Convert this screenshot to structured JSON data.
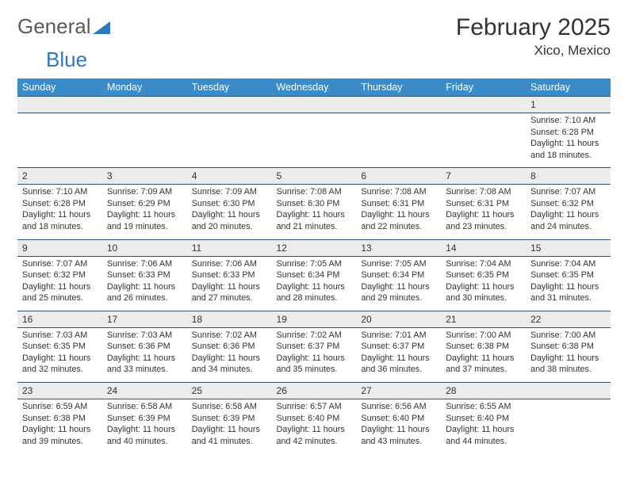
{
  "brand": {
    "part1": "General",
    "part2": "Blue"
  },
  "title": "February 2025",
  "location": "Xico, Mexico",
  "colors": {
    "header_bg": "#3b8bc9",
    "header_text": "#ffffff",
    "daynum_bg": "#ececec",
    "row_border": "#30517a",
    "brand_blue": "#2e78bf",
    "text": "#333333",
    "page_bg": "#ffffff"
  },
  "typography": {
    "title_fontsize": 30,
    "subtitle_fontsize": 17,
    "dayheader_fontsize": 12.5,
    "daynum_fontsize": 12,
    "detail_fontsize": 10.8
  },
  "day_headers": [
    "Sunday",
    "Monday",
    "Tuesday",
    "Wednesday",
    "Thursday",
    "Friday",
    "Saturday"
  ],
  "weeks": [
    [
      null,
      null,
      null,
      null,
      null,
      null,
      {
        "n": "1",
        "sunrise": "7:10 AM",
        "sunset": "6:28 PM",
        "daylight": "11 hours and 18 minutes."
      }
    ],
    [
      {
        "n": "2",
        "sunrise": "7:10 AM",
        "sunset": "6:28 PM",
        "daylight": "11 hours and 18 minutes."
      },
      {
        "n": "3",
        "sunrise": "7:09 AM",
        "sunset": "6:29 PM",
        "daylight": "11 hours and 19 minutes."
      },
      {
        "n": "4",
        "sunrise": "7:09 AM",
        "sunset": "6:30 PM",
        "daylight": "11 hours and 20 minutes."
      },
      {
        "n": "5",
        "sunrise": "7:08 AM",
        "sunset": "6:30 PM",
        "daylight": "11 hours and 21 minutes."
      },
      {
        "n": "6",
        "sunrise": "7:08 AM",
        "sunset": "6:31 PM",
        "daylight": "11 hours and 22 minutes."
      },
      {
        "n": "7",
        "sunrise": "7:08 AM",
        "sunset": "6:31 PM",
        "daylight": "11 hours and 23 minutes."
      },
      {
        "n": "8",
        "sunrise": "7:07 AM",
        "sunset": "6:32 PM",
        "daylight": "11 hours and 24 minutes."
      }
    ],
    [
      {
        "n": "9",
        "sunrise": "7:07 AM",
        "sunset": "6:32 PM",
        "daylight": "11 hours and 25 minutes."
      },
      {
        "n": "10",
        "sunrise": "7:06 AM",
        "sunset": "6:33 PM",
        "daylight": "11 hours and 26 minutes."
      },
      {
        "n": "11",
        "sunrise": "7:06 AM",
        "sunset": "6:33 PM",
        "daylight": "11 hours and 27 minutes."
      },
      {
        "n": "12",
        "sunrise": "7:05 AM",
        "sunset": "6:34 PM",
        "daylight": "11 hours and 28 minutes."
      },
      {
        "n": "13",
        "sunrise": "7:05 AM",
        "sunset": "6:34 PM",
        "daylight": "11 hours and 29 minutes."
      },
      {
        "n": "14",
        "sunrise": "7:04 AM",
        "sunset": "6:35 PM",
        "daylight": "11 hours and 30 minutes."
      },
      {
        "n": "15",
        "sunrise": "7:04 AM",
        "sunset": "6:35 PM",
        "daylight": "11 hours and 31 minutes."
      }
    ],
    [
      {
        "n": "16",
        "sunrise": "7:03 AM",
        "sunset": "6:35 PM",
        "daylight": "11 hours and 32 minutes."
      },
      {
        "n": "17",
        "sunrise": "7:03 AM",
        "sunset": "6:36 PM",
        "daylight": "11 hours and 33 minutes."
      },
      {
        "n": "18",
        "sunrise": "7:02 AM",
        "sunset": "6:36 PM",
        "daylight": "11 hours and 34 minutes."
      },
      {
        "n": "19",
        "sunrise": "7:02 AM",
        "sunset": "6:37 PM",
        "daylight": "11 hours and 35 minutes."
      },
      {
        "n": "20",
        "sunrise": "7:01 AM",
        "sunset": "6:37 PM",
        "daylight": "11 hours and 36 minutes."
      },
      {
        "n": "21",
        "sunrise": "7:00 AM",
        "sunset": "6:38 PM",
        "daylight": "11 hours and 37 minutes."
      },
      {
        "n": "22",
        "sunrise": "7:00 AM",
        "sunset": "6:38 PM",
        "daylight": "11 hours and 38 minutes."
      }
    ],
    [
      {
        "n": "23",
        "sunrise": "6:59 AM",
        "sunset": "6:38 PM",
        "daylight": "11 hours and 39 minutes."
      },
      {
        "n": "24",
        "sunrise": "6:58 AM",
        "sunset": "6:39 PM",
        "daylight": "11 hours and 40 minutes."
      },
      {
        "n": "25",
        "sunrise": "6:58 AM",
        "sunset": "6:39 PM",
        "daylight": "11 hours and 41 minutes."
      },
      {
        "n": "26",
        "sunrise": "6:57 AM",
        "sunset": "6:40 PM",
        "daylight": "11 hours and 42 minutes."
      },
      {
        "n": "27",
        "sunrise": "6:56 AM",
        "sunset": "6:40 PM",
        "daylight": "11 hours and 43 minutes."
      },
      {
        "n": "28",
        "sunrise": "6:55 AM",
        "sunset": "6:40 PM",
        "daylight": "11 hours and 44 minutes."
      },
      null
    ]
  ],
  "labels": {
    "sunrise": "Sunrise:",
    "sunset": "Sunset:",
    "daylight": "Daylight:"
  }
}
